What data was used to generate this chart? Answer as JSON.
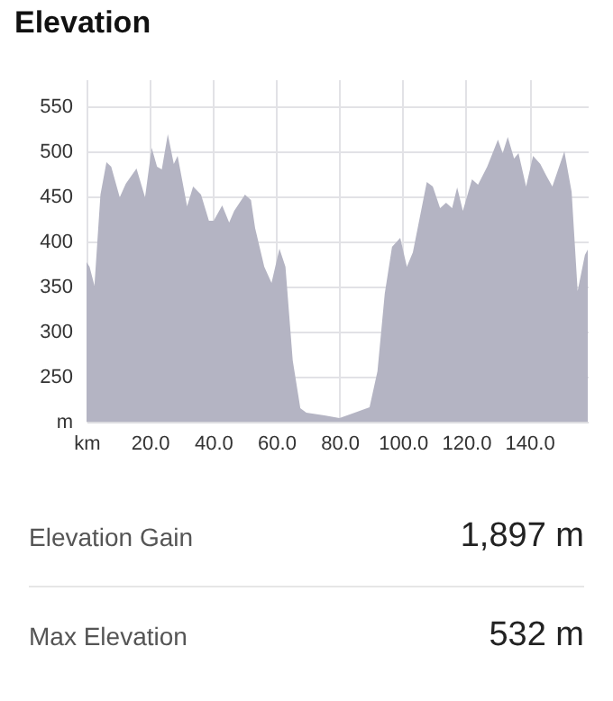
{
  "chart_data": {
    "type": "area",
    "title": "Elevation",
    "x": [
      0,
      0.95,
      2.5,
      4.4,
      6.3,
      7.8,
      10.5,
      12.4,
      15.8,
      18.5,
      20.6,
      22.3,
      23.8,
      25.7,
      27.6,
      28.8,
      31.8,
      33.7,
      36.2,
      38.7,
      40.2,
      42.9,
      45.1,
      46.7,
      50.1,
      52,
      53.3,
      56.2,
      58.5,
      61,
      62.9,
      65.2,
      67.6,
      69.5,
      75.2,
      80,
      84.8,
      89.5,
      92,
      94.3,
      96.6,
      99.2,
      101.3,
      103.2,
      107.6,
      109.5,
      111.8,
      113.7,
      115.6,
      117.2,
      119,
      121.9,
      123.8,
      126.7,
      130.1,
      131.6,
      133.2,
      135.2,
      136.6,
      139,
      141.2,
      143.5,
      145.4,
      147.3,
      151.1,
      153.4,
      155.3,
      157.6,
      158.5
    ],
    "series": [
      {
        "color": "#b4b4c3",
        "values": [
          377,
          372,
          351,
          452,
          488,
          483,
          449,
          464,
          481,
          449,
          504,
          483,
          480,
          519,
          486,
          495,
          439,
          461,
          452,
          423,
          423,
          440,
          421,
          434,
          452,
          446,
          415,
          372,
          354,
          392,
          372,
          268,
          215,
          210,
          207,
          204,
          210,
          216,
          256,
          342,
          394,
          404,
          372,
          388,
          466,
          461,
          437,
          443,
          437,
          460,
          434,
          469,
          463,
          483,
          513,
          498,
          516,
          492,
          498,
          461,
          495,
          486,
          473,
          461,
          500,
          455,
          345,
          385,
          391
        ]
      }
    ],
    "xlim": [
      0,
      158.5
    ],
    "ylim": [
      200,
      580
    ],
    "xticks": [
      {
        "value": 0,
        "label": "km"
      },
      {
        "value": 20,
        "label": "20.0"
      },
      {
        "value": 40,
        "label": "40.0"
      },
      {
        "value": 60,
        "label": "60.0"
      },
      {
        "value": 80,
        "label": "80.0"
      },
      {
        "value": 100,
        "label": "100.0"
      },
      {
        "value": 120,
        "label": "120.0"
      },
      {
        "value": 140,
        "label": "140.0"
      }
    ],
    "yticks": [
      {
        "value": 200,
        "label": "m"
      },
      250,
      300,
      350,
      400,
      450,
      500,
      550
    ],
    "grid": true,
    "annotations": [
      "Elevation Gain",
      "1,897 m",
      "Max Elevation",
      "532 m"
    ]
  }
}
